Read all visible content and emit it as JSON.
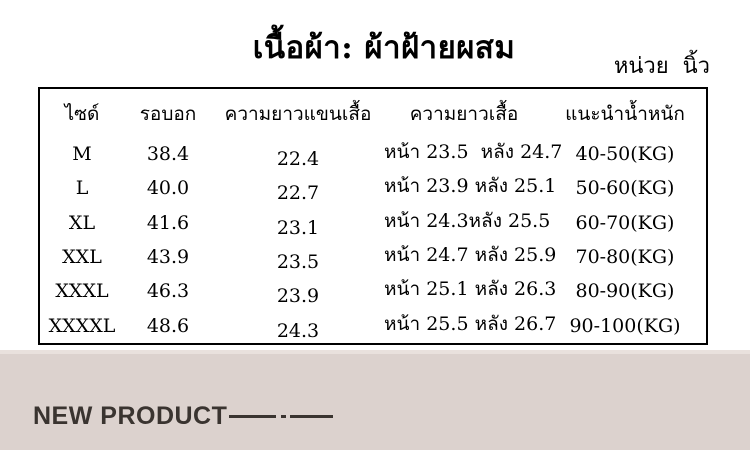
{
  "page": {
    "title": "เนื้อผ้า: ผ้าฝ้ายผสม",
    "unit_label": "หน่วย  นิ้ว",
    "footer_label": "NEW PRODUCT"
  },
  "table": {
    "columns": [
      "ไซด์",
      "รอบอก",
      "ความยาวแขนเสื้อ",
      "ความยาวเสื้อ",
      "แนะนำน้ำหนัก"
    ],
    "rows": [
      [
        "M",
        "38.4",
        "22.4",
        "หน้า 23.5  หลัง 24.7",
        "40-50(KG)"
      ],
      [
        "L",
        "40.0",
        "22.7",
        "หน้า 23.9 หลัง 25.1",
        "50-60(KG)"
      ],
      [
        "XL",
        "41.6",
        "23.1",
        "หน้า 24.3หลัง 25.5",
        "60-70(KG)"
      ],
      [
        "XXL",
        "43.9",
        "23.5",
        "หน้า 24.7 หลัง 25.9",
        "70-80(KG)"
      ],
      [
        "XXXL",
        "46.3",
        "23.9",
        "หน้า 25.1 หลัง 26.3",
        "80-90(KG)"
      ],
      [
        "XXXXL",
        "48.6",
        "24.3",
        "หน้า 25.5 หลัง 26.7",
        "90-100(KG)"
      ]
    ]
  },
  "colors": {
    "footer_background": "#dcd2ce",
    "footer_text": "#3a3430",
    "table_border": "#000000",
    "page_background": "#ffffff"
  }
}
